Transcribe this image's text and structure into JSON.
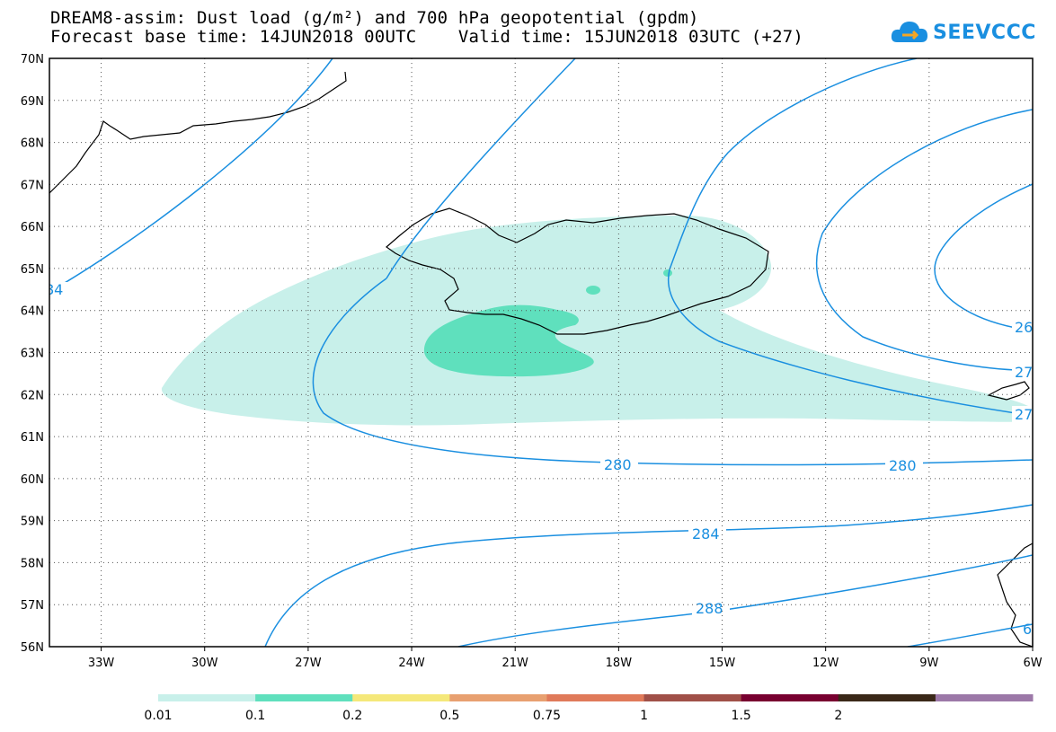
{
  "title": {
    "line1": "DREAM8-assim: Dust load (g/m²) and 700 hPa geopotential (gpdm)",
    "line2": "Forecast base time: 14JUN2018 00UTC    Valid time: 15JUN2018 03UTC (+27)"
  },
  "logo": {
    "text": "SEEVCCC",
    "icon": "cloud-icon",
    "color": "#1a8fe0"
  },
  "map": {
    "lon_range": [
      -34.5,
      -6
    ],
    "lat_range": [
      56,
      70
    ],
    "lon_ticks": [
      "33W",
      "30W",
      "27W",
      "24W",
      "21W",
      "18W",
      "15W",
      "12W",
      "9W",
      "6W"
    ],
    "lat_ticks": [
      "70N",
      "69N",
      "68N",
      "67N",
      "66N",
      "65N",
      "64N",
      "63N",
      "62N",
      "61N",
      "60N",
      "59N",
      "58N",
      "57N",
      "56N"
    ],
    "grid": "dotted",
    "contour_color": "#1a8fe0",
    "contour_labels": [
      "84",
      "280",
      "280",
      "284",
      "288",
      "26",
      "27",
      "27",
      "6"
    ]
  },
  "legend": {
    "colors": [
      "#c8f0ea",
      "#5fe0bd",
      "#f5e87a",
      "#e8a070",
      "#e07a5a",
      "#a05048",
      "#780030",
      "#3a2818",
      "#9c78a8"
    ],
    "labels": [
      "0.01",
      "0.1",
      "0.2",
      "0.5",
      "0.75",
      "1",
      "1.5",
      "2"
    ]
  }
}
